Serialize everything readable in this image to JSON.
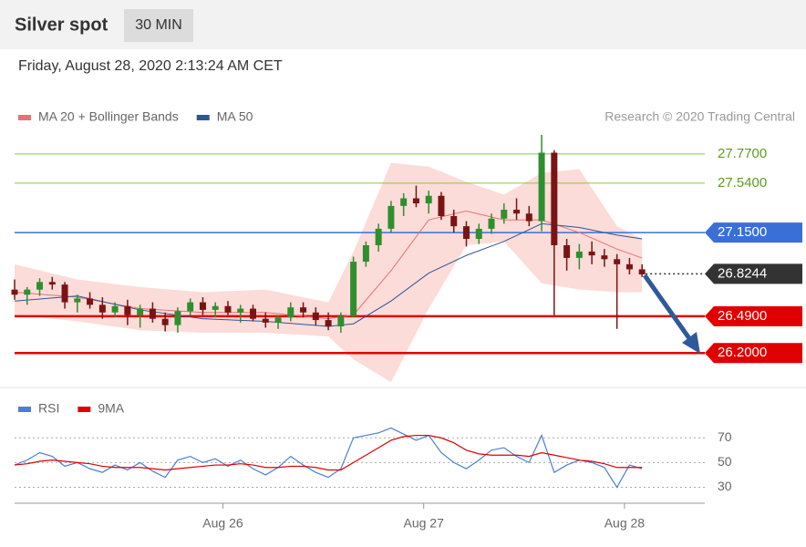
{
  "header": {
    "title": "Silver spot",
    "interval": "30 MIN",
    "timestamp": "Friday, August 28, 2020 2:13:24 AM CET"
  },
  "chart_data": [
    {
      "type": "candlestick",
      "credit": "Research © 2020 Trading Central",
      "xlim": [
        0,
        55
      ],
      "ylim": [
        25.95,
        27.92
      ],
      "up_color": "#2f8f2f",
      "down_color": "#7a1414",
      "x": [
        0,
        1,
        2,
        3,
        4,
        5,
        6,
        7,
        8,
        9,
        10,
        11,
        12,
        13,
        14,
        15,
        16,
        17,
        18,
        19,
        20,
        21,
        22,
        23,
        24,
        25,
        26,
        27,
        28,
        29,
        30,
        31,
        32,
        33,
        34,
        35,
        36,
        37,
        38,
        39,
        40,
        41,
        42,
        43,
        44,
        45,
        46,
        47,
        48,
        49,
        50
      ],
      "open": [
        26.7,
        26.66,
        26.7,
        26.76,
        26.74,
        26.6,
        26.63,
        26.58,
        26.52,
        26.57,
        26.5,
        26.55,
        26.47,
        26.42,
        26.53,
        26.6,
        26.54,
        26.57,
        26.52,
        26.55,
        26.47,
        26.44,
        26.48,
        26.56,
        26.52,
        26.46,
        26.41,
        26.49,
        26.92,
        27.05,
        27.18,
        27.36,
        27.42,
        27.38,
        27.44,
        27.28,
        27.2,
        27.1,
        27.18,
        27.26,
        27.33,
        27.3,
        27.24,
        27.78,
        27.05,
        26.95,
        27.0,
        26.97,
        26.94,
        26.9,
        26.86
      ],
      "high": [
        26.78,
        26.72,
        26.79,
        26.8,
        26.76,
        26.66,
        26.68,
        26.64,
        26.6,
        26.62,
        26.58,
        26.6,
        26.52,
        26.56,
        26.63,
        26.64,
        26.6,
        26.61,
        26.58,
        26.58,
        26.52,
        26.5,
        26.6,
        26.6,
        26.56,
        26.52,
        26.52,
        26.96,
        27.08,
        27.22,
        27.4,
        27.46,
        27.52,
        27.48,
        27.47,
        27.33,
        27.24,
        27.22,
        27.3,
        27.38,
        27.42,
        27.36,
        27.92,
        27.8,
        27.1,
        27.06,
        27.08,
        27.02,
        26.98,
        26.95,
        26.9
      ],
      "low": [
        26.62,
        26.58,
        26.65,
        26.7,
        26.55,
        26.52,
        26.55,
        26.47,
        26.48,
        26.42,
        26.4,
        26.44,
        26.37,
        26.36,
        26.5,
        26.5,
        26.48,
        26.5,
        26.44,
        26.45,
        26.4,
        26.39,
        26.45,
        26.48,
        26.42,
        26.38,
        26.36,
        26.48,
        26.88,
        27.0,
        27.15,
        27.28,
        27.35,
        27.3,
        27.25,
        27.15,
        27.04,
        27.06,
        27.14,
        27.22,
        27.25,
        27.2,
        27.16,
        26.5,
        26.85,
        26.86,
        26.9,
        26.88,
        26.39,
        26.82,
        26.8
      ],
      "close": [
        26.66,
        26.7,
        26.76,
        26.74,
        26.6,
        26.63,
        26.58,
        26.52,
        26.57,
        26.5,
        26.55,
        26.47,
        26.42,
        26.53,
        26.6,
        26.54,
        26.57,
        26.52,
        26.55,
        26.47,
        26.44,
        26.48,
        26.56,
        26.52,
        26.46,
        26.41,
        26.49,
        26.92,
        27.05,
        27.18,
        27.36,
        27.42,
        27.38,
        27.44,
        27.28,
        27.2,
        27.1,
        27.18,
        27.26,
        27.33,
        27.3,
        27.24,
        27.78,
        27.05,
        26.95,
        27.0,
        26.97,
        26.94,
        26.9,
        26.86,
        26.82
      ],
      "series": [
        {
          "name": "MA 20 + Bollinger Bands",
          "color": "#e57373",
          "band_color": "#fcdcd8",
          "x": [
            0,
            5,
            10,
            15,
            20,
            25,
            27,
            30,
            33,
            36,
            39,
            42,
            45,
            48,
            50
          ],
          "values": [
            26.68,
            26.64,
            26.55,
            26.52,
            26.52,
            26.47,
            26.5,
            26.85,
            27.25,
            27.32,
            27.25,
            27.25,
            27.15,
            27.02,
            26.95
          ],
          "upper": [
            26.9,
            26.78,
            26.72,
            26.68,
            26.7,
            26.6,
            27.0,
            27.7,
            27.67,
            27.55,
            27.45,
            27.62,
            27.65,
            27.2,
            27.1
          ],
          "lower": [
            26.5,
            26.45,
            26.38,
            26.36,
            26.36,
            26.33,
            26.15,
            25.97,
            26.55,
            27.05,
            27.08,
            26.75,
            26.7,
            26.68,
            26.68
          ]
        },
        {
          "name": "MA 50",
          "color": "#2f5597",
          "x": [
            0,
            5,
            10,
            15,
            20,
            25,
            27,
            30,
            33,
            36,
            39,
            42,
            45,
            48,
            50
          ],
          "values": [
            26.61,
            26.65,
            26.54,
            26.47,
            26.45,
            26.41,
            26.43,
            26.61,
            26.83,
            26.97,
            27.08,
            27.22,
            27.19,
            27.13,
            27.1
          ]
        }
      ],
      "levels": [
        {
          "value": 27.77,
          "label": "27.7700",
          "color": "#8bc34a",
          "text_color": "#5c9e1e",
          "style": "thin",
          "tag": false
        },
        {
          "value": 27.54,
          "label": "27.5400",
          "color": "#8bc34a",
          "text_color": "#5c9e1e",
          "style": "thin",
          "tag": false
        },
        {
          "value": 27.15,
          "label": "27.1500",
          "color": "#3a6fd8",
          "text_color": "#ffffff",
          "style": "medium",
          "tag": true
        },
        {
          "value": 26.8244,
          "label": "26.8244",
          "color": "#333333",
          "text_color": "#ffffff",
          "style": "dotted",
          "tag": true
        },
        {
          "value": 26.49,
          "label": "26.4900",
          "color": "#e00000",
          "text_color": "#ffffff",
          "style": "thick",
          "tag": true
        },
        {
          "value": 26.2,
          "label": "26.2000",
          "color": "#e00000",
          "text_color": "#ffffff",
          "style": "thick",
          "tag": true
        }
      ]
    },
    {
      "type": "line",
      "xlim": [
        0,
        55
      ],
      "ylim": [
        20,
        82
      ],
      "yticks": [
        30,
        50,
        70
      ],
      "xticks": [
        {
          "value": 16.6,
          "label": "Aug 26"
        },
        {
          "value": 32.6,
          "label": "Aug 27"
        },
        {
          "value": 48.6,
          "label": "Aug 28"
        }
      ],
      "series": [
        {
          "name": "RSI",
          "color": "#4a7fd4",
          "values": [
            48,
            52,
            58,
            55,
            47,
            50,
            45,
            42,
            48,
            44,
            50,
            43,
            38,
            52,
            55,
            50,
            53,
            47,
            52,
            45,
            40,
            46,
            55,
            48,
            42,
            38,
            45,
            70,
            72,
            74,
            78,
            73,
            68,
            72,
            58,
            50,
            45,
            52,
            60,
            62,
            55,
            50,
            72,
            42,
            48,
            52,
            50,
            46,
            30,
            48,
            45
          ]
        },
        {
          "name": "9MA",
          "color": "#e00000",
          "values": [
            48,
            49,
            51,
            52,
            51,
            50,
            49,
            47,
            46,
            46,
            46,
            45,
            44,
            45,
            46,
            47,
            48,
            48,
            49,
            48,
            46,
            46,
            47,
            47,
            46,
            44,
            44,
            50,
            56,
            62,
            68,
            71,
            72,
            72,
            70,
            66,
            60,
            57,
            56,
            56,
            56,
            55,
            58,
            56,
            54,
            52,
            51,
            49,
            46,
            46,
            46
          ]
        }
      ]
    }
  ]
}
